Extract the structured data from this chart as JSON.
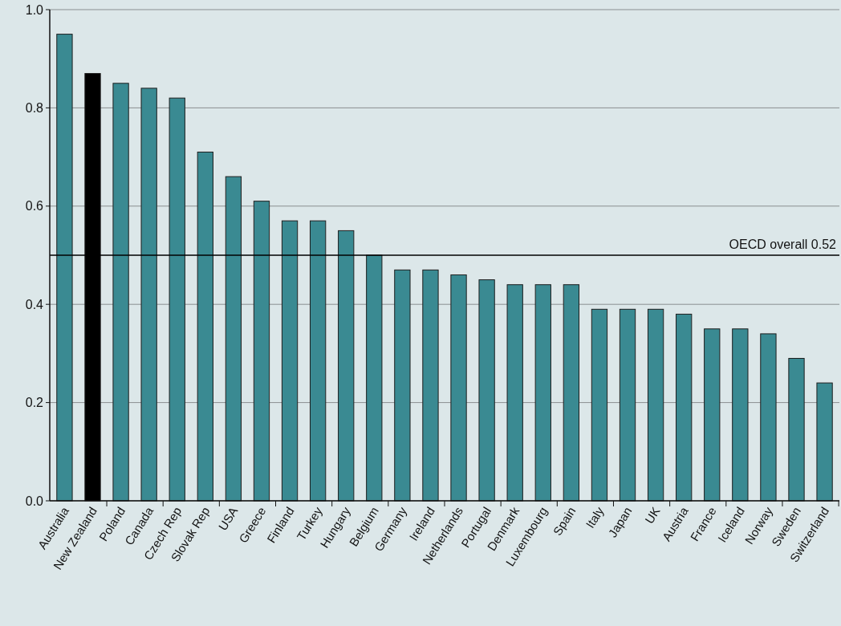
{
  "chart_data": {
    "type": "bar",
    "categories": [
      "Australia",
      "New Zealand",
      "Poland",
      "Canada",
      "Czech Rep",
      "Slovak Rep",
      "USA",
      "Greece",
      "Finland",
      "Turkey",
      "Hungary",
      "Belgium",
      "Germany",
      "Ireland",
      "Netherlands",
      "Portugal",
      "Denmark",
      "Luxembourg",
      "Spain",
      "Italy",
      "Japan",
      "UK",
      "Austria",
      "France",
      "Iceland",
      "Norway",
      "Sweden",
      "Switzerland"
    ],
    "values": [
      0.95,
      0.87,
      0.85,
      0.84,
      0.82,
      0.71,
      0.66,
      0.61,
      0.57,
      0.57,
      0.55,
      0.5,
      0.47,
      0.47,
      0.46,
      0.45,
      0.44,
      0.44,
      0.44,
      0.39,
      0.39,
      0.39,
      0.38,
      0.35,
      0.35,
      0.34,
      0.29,
      0.24
    ],
    "colors": [
      "#3a8a92",
      "#000000",
      "#3a8a92",
      "#3a8a92",
      "#3a8a92",
      "#3a8a92",
      "#3a8a92",
      "#3a8a92",
      "#3a8a92",
      "#3a8a92",
      "#3a8a92",
      "#3a8a92",
      "#3a8a92",
      "#3a8a92",
      "#3a8a92",
      "#3a8a92",
      "#3a8a92",
      "#3a8a92",
      "#3a8a92",
      "#3a8a92",
      "#3a8a92",
      "#3a8a92",
      "#3a8a92",
      "#3a8a92",
      "#3a8a92",
      "#3a8a92",
      "#3a8a92",
      "#3a8a92"
    ],
    "ylim": [
      0,
      1
    ],
    "yticks": [
      {
        "value": 0,
        "label": "0.0"
      },
      {
        "value": 0.2,
        "label": "0.2"
      },
      {
        "value": 0.4,
        "label": "0.4"
      },
      {
        "value": 0.6,
        "label": "0.6"
      },
      {
        "value": 0.8,
        "label": "0.8"
      },
      {
        "value": 1,
        "label": "1.0"
      }
    ],
    "grid": "y",
    "ref_lines": [
      {
        "axis": "y",
        "value": 0.5,
        "label": "OECD overall 0.52",
        "color": "#000000"
      }
    ]
  }
}
